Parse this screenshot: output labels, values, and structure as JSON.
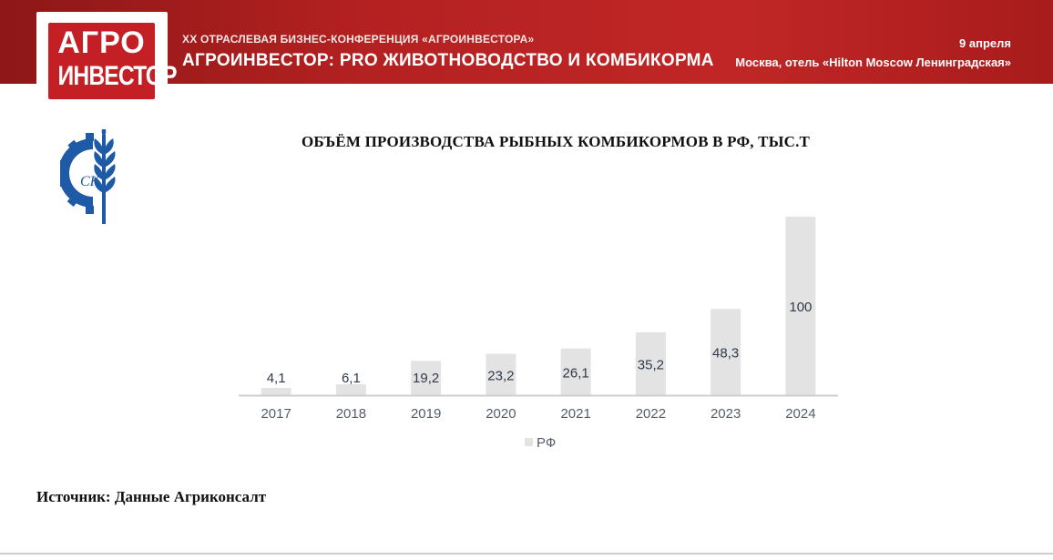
{
  "banner": {
    "logo_line1": "АГРО",
    "logo_line2": "ИНВЕСТОР",
    "conference": "XX ОТРАСЛЕВАЯ БИЗНЕС-КОНФЕРЕНЦИЯ «АГРОИНВЕСТОРА»",
    "title": "АГРОИНВЕСТОР: PRO ЖИВОТНОВОДСТВО И КОМБИКОРМА",
    "date": "9 апреля",
    "place": "Москва, отель «Hilton Moscow Ленинградская»"
  },
  "emblem": {
    "icon": "gear-wheat-emblem",
    "monogram": "СК",
    "color": "#1f5aa6"
  },
  "colors": {
    "banner": "#b42121",
    "bar": "#e3e3e3",
    "axis": "#cfcfcf",
    "label": "#2f3a4a"
  },
  "chart_data": {
    "type": "bar",
    "title": "ОБЪЁМ ПРОИЗВОДСТВА РЫБНЫХ КОМБИКОРМОВ В РФ, ТЫС.Т",
    "categories": [
      "2017",
      "2018",
      "2019",
      "2020",
      "2021",
      "2022",
      "2023",
      "2024"
    ],
    "series": [
      {
        "name": "РФ",
        "values": [
          4.1,
          6.1,
          19.2,
          23.2,
          26.1,
          35.2,
          48.3,
          100
        ]
      }
    ],
    "data_labels": [
      "4,1",
      "6,1",
      "19,2",
      "23,2",
      "26,1",
      "35,2",
      "48,3",
      "100"
    ],
    "ylim": [
      0,
      100
    ],
    "grid": false,
    "legend": "bottom"
  },
  "source": "Источник: Данные Агриконсалт"
}
